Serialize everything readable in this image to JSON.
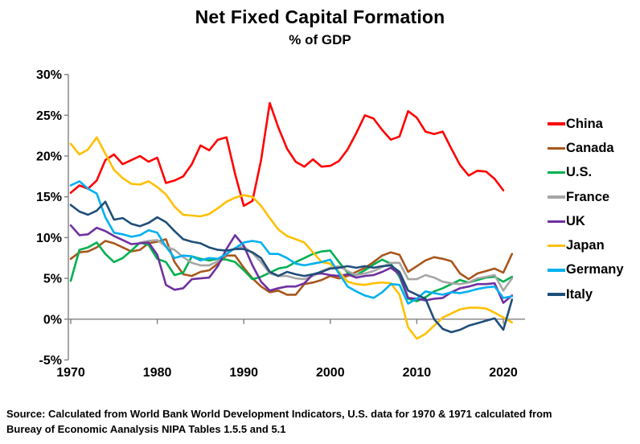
{
  "title": "Net Fixed Capital Formation",
  "subtitle": "% of GDP",
  "source": {
    "line1": "Source:  Calculated from World Bank World Development Indicators, U.S. data for 1970 & 1971 calculated from",
    "line2": "Bureay of Economic Aanalysis NIPA Tables 1.5.5 and 5.1"
  },
  "chart_data": {
    "type": "line",
    "title": "Net Fixed Capital Formation",
    "subtitle": "% of GDP",
    "xlabel": "",
    "ylabel": "",
    "grid": false,
    "legend_position": "right",
    "xlim": [
      1970,
      2022
    ],
    "ylim": [
      -5,
      30
    ],
    "x_ticks": [
      1970,
      1980,
      1990,
      2000,
      2010,
      2020
    ],
    "y_ticks": [
      {
        "value": 30,
        "label": "30%"
      },
      {
        "value": 25,
        "label": "25%"
      },
      {
        "value": 20,
        "label": "20%"
      },
      {
        "value": 15,
        "label": "15%"
      },
      {
        "value": 10,
        "label": "10%"
      },
      {
        "value": 5,
        "label": "5%"
      },
      {
        "value": 0,
        "label": "0%"
      },
      {
        "value": -5,
        "label": "-5%"
      }
    ],
    "axis_color": "#808080",
    "series": [
      {
        "name": "China",
        "color": "#FF0000",
        "start_year": 1970,
        "values": [
          15.5,
          16.4,
          16.0,
          17.0,
          19.5,
          20.2,
          19.0,
          19.5,
          20.0,
          19.3,
          19.8,
          16.7,
          17.0,
          17.5,
          19.0,
          21.3,
          20.7,
          22.0,
          22.3,
          17.8,
          13.9,
          14.5,
          19.5,
          26.5,
          23.5,
          20.9,
          19.3,
          18.7,
          19.6,
          18.7,
          18.8,
          19.4,
          20.8,
          22.8,
          25.0,
          24.6,
          23.2,
          22.0,
          22.4,
          25.5,
          24.7,
          23.0,
          22.7,
          23.0,
          20.9,
          18.9,
          17.6,
          18.2,
          18.1,
          17.2,
          15.8
        ]
      },
      {
        "name": "Canada",
        "color": "#A8561C",
        "start_year": 1970,
        "values": [
          7.4,
          8.2,
          8.3,
          8.8,
          9.6,
          9.3,
          8.8,
          8.3,
          8.5,
          9.3,
          9.5,
          9.8,
          7.0,
          5.5,
          5.3,
          5.8,
          6.0,
          6.8,
          7.8,
          7.8,
          6.3,
          5.0,
          4.0,
          3.3,
          3.5,
          3.0,
          3.0,
          4.3,
          4.5,
          4.8,
          5.3,
          5.0,
          5.3,
          5.8,
          6.3,
          7.0,
          7.8,
          8.2,
          7.9,
          5.8,
          6.5,
          7.2,
          7.6,
          7.4,
          7.1,
          5.6,
          4.9,
          5.6,
          5.9,
          6.2,
          5.7,
          8.0
        ]
      },
      {
        "name": "U.S.",
        "color": "#00B050",
        "start_year": 1970,
        "values": [
          4.7,
          8.5,
          8.8,
          9.4,
          8.0,
          7.0,
          7.5,
          8.4,
          9.4,
          9.1,
          7.4,
          7.0,
          5.4,
          5.7,
          7.7,
          7.4,
          7.2,
          7.4,
          7.3,
          7.0,
          6.0,
          4.9,
          5.2,
          5.7,
          6.2,
          6.4,
          7.0,
          7.5,
          8.0,
          8.3,
          8.4,
          7.0,
          5.7,
          5.4,
          6.0,
          6.7,
          7.3,
          6.8,
          5.2,
          2.5,
          2.2,
          2.7,
          3.4,
          3.8,
          4.3,
          4.8,
          4.5,
          4.8,
          5.1,
          5.2,
          4.6,
          5.2
        ]
      },
      {
        "name": "France",
        "color": "#A6A6A6",
        "start_year": 1978,
        "values": [
          9.4,
          9.6,
          9.7,
          8.9,
          8.5,
          7.6,
          6.9,
          6.6,
          6.6,
          7.1,
          8.0,
          8.7,
          8.9,
          8.1,
          7.0,
          5.6,
          5.3,
          5.3,
          5.0,
          4.9,
          5.3,
          5.9,
          6.3,
          6.5,
          5.9,
          5.4,
          5.6,
          5.9,
          6.4,
          6.9,
          6.9,
          4.9,
          4.9,
          5.4,
          5.1,
          4.6,
          4.4,
          4.3,
          4.5,
          5.0,
          5.2,
          5.4,
          3.5,
          5.0
        ]
      },
      {
        "name": "UK",
        "color": "#7030A0",
        "start_year": 1970,
        "values": [
          11.5,
          10.3,
          10.4,
          11.2,
          10.8,
          10.2,
          9.7,
          9.2,
          9.3,
          9.4,
          7.9,
          4.2,
          3.6,
          3.8,
          4.9,
          5.0,
          5.1,
          6.5,
          8.6,
          10.3,
          9.0,
          6.6,
          4.6,
          3.5,
          3.8,
          4.0,
          4.0,
          4.4,
          5.5,
          5.6,
          5.4,
          5.3,
          5.5,
          5.1,
          5.3,
          5.4,
          5.8,
          6.3,
          5.5,
          2.6,
          2.5,
          2.3,
          2.5,
          2.6,
          3.3,
          3.8,
          4.0,
          4.3,
          4.3,
          4.4,
          2.0,
          2.9
        ]
      },
      {
        "name": "Japan",
        "color": "#FFC000",
        "start_year": 1970,
        "values": [
          21.5,
          20.2,
          20.8,
          22.3,
          20.3,
          18.3,
          17.3,
          16.6,
          16.5,
          16.9,
          16.2,
          15.3,
          13.8,
          12.8,
          12.7,
          12.6,
          12.9,
          13.6,
          14.4,
          14.9,
          15.2,
          15.0,
          13.9,
          12.4,
          11.0,
          10.2,
          9.8,
          9.4,
          8.2,
          7.0,
          6.8,
          5.8,
          4.6,
          4.3,
          4.2,
          4.4,
          4.5,
          4.4,
          3.0,
          -1.0,
          -2.4,
          -1.8,
          -0.8,
          0.2,
          0.7,
          1.2,
          1.4,
          1.4,
          1.3,
          0.8,
          0.2,
          -0.4
        ]
      },
      {
        "name": "Germany",
        "color": "#00B0F0",
        "start_year": 1970,
        "values": [
          16.4,
          16.9,
          16.0,
          15.4,
          12.5,
          10.6,
          10.4,
          10.1,
          10.3,
          10.9,
          10.6,
          8.9,
          7.5,
          7.8,
          7.7,
          7.2,
          7.5,
          7.4,
          8.0,
          8.7,
          9.4,
          9.6,
          9.4,
          8.0,
          8.0,
          7.5,
          6.8,
          6.6,
          6.8,
          7.0,
          7.3,
          5.6,
          4.0,
          3.4,
          2.9,
          2.6,
          3.3,
          4.3,
          4.2,
          1.9,
          2.5,
          3.4,
          3.2,
          3.0,
          3.3,
          3.2,
          3.4,
          3.7,
          3.9,
          4.0,
          2.6,
          2.8
        ]
      },
      {
        "name": "Italy",
        "color": "#1F4E79",
        "start_year": 1970,
        "values": [
          14.0,
          13.2,
          12.8,
          13.3,
          14.4,
          12.2,
          12.4,
          11.7,
          11.4,
          11.8,
          12.5,
          11.9,
          10.8,
          9.8,
          9.5,
          9.3,
          8.8,
          8.5,
          8.4,
          8.6,
          8.6,
          8.2,
          7.5,
          5.8,
          5.3,
          5.8,
          5.5,
          5.3,
          5.5,
          5.8,
          6.2,
          6.3,
          6.5,
          6.3,
          6.5,
          6.3,
          6.5,
          6.6,
          5.8,
          3.5,
          3.0,
          2.5,
          0.0,
          -1.2,
          -1.6,
          -1.3,
          -0.8,
          -0.5,
          -0.2,
          0.1,
          -1.3,
          2.4
        ]
      }
    ]
  }
}
